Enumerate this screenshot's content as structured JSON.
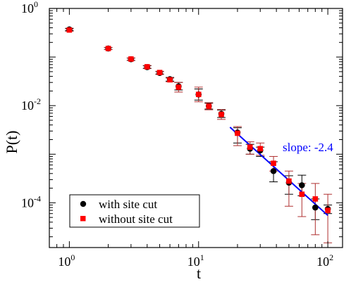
{
  "chart_data": {
    "type": "scatter",
    "xlabel": "t",
    "ylabel": "P(t)",
    "xscale": "log",
    "yscale": "log",
    "xlim": [
      0.7,
      130
    ],
    "ylim": [
      1.2e-05,
      1
    ],
    "x_ticks": [
      {
        "base": "10",
        "exp": "0",
        "value": 1
      },
      {
        "base": "10",
        "exp": "1",
        "value": 10
      },
      {
        "base": "10",
        "exp": "2",
        "value": 100
      }
    ],
    "y_ticks": [
      {
        "base": "10",
        "exp": "0",
        "value": 1
      },
      {
        "base": "10",
        "exp": "-2",
        "value": 0.01
      },
      {
        "base": "10",
        "exp": "-4",
        "value": 0.0001
      }
    ],
    "grid": false,
    "legend_position": "bottom-left",
    "series": [
      {
        "name": "with site cut",
        "marker": "circle",
        "color": "#000000",
        "points": [
          {
            "x": 1,
            "y": 0.37,
            "lo": 0.35,
            "hi": 0.39
          },
          {
            "x": 2,
            "y": 0.15,
            "lo": 0.143,
            "hi": 0.157
          },
          {
            "x": 3,
            "y": 0.09,
            "lo": 0.085,
            "hi": 0.095
          },
          {
            "x": 4,
            "y": 0.062,
            "lo": 0.058,
            "hi": 0.066
          },
          {
            "x": 5,
            "y": 0.047,
            "lo": 0.044,
            "hi": 0.05
          },
          {
            "x": 6,
            "y": 0.035,
            "lo": 0.032,
            "hi": 0.038
          },
          {
            "x": 7,
            "y": 0.025,
            "lo": 0.021,
            "hi": 0.03
          },
          {
            "x": 10,
            "y": 0.017,
            "lo": 0.013,
            "hi": 0.022
          },
          {
            "x": 12,
            "y": 0.0098,
            "lo": 0.0085,
            "hi": 0.0112
          },
          {
            "x": 15,
            "y": 0.0068,
            "lo": 0.0057,
            "hi": 0.0081
          },
          {
            "x": 20,
            "y": 0.0028,
            "lo": 0.0017,
            "hi": 0.0035
          },
          {
            "x": 25,
            "y": 0.0013,
            "lo": 0.001,
            "hi": 0.0016
          },
          {
            "x": 30,
            "y": 0.0012,
            "lo": 0.0009,
            "hi": 0.0014
          },
          {
            "x": 38,
            "y": 0.00045,
            "lo": 0.00027,
            "hi": 0.0007
          },
          {
            "x": 50,
            "y": 0.00026,
            "lo": 0.00015,
            "hi": 0.00036
          },
          {
            "x": 63,
            "y": 0.00023,
            "lo": 0.00014,
            "hi": 0.00037
          },
          {
            "x": 80,
            "y": 8e-05,
            "lo": 4.5e-05,
            "hi": 0.00012
          },
          {
            "x": 100,
            "y": 7.5e-05,
            "lo": 6e-05,
            "hi": 9e-05
          }
        ]
      },
      {
        "name": "without site cut",
        "marker": "square",
        "color": "#ff0000",
        "points": [
          {
            "x": 1,
            "y": 0.36,
            "lo": 0.34,
            "hi": 0.38
          },
          {
            "x": 2,
            "y": 0.15,
            "lo": 0.142,
            "hi": 0.158
          },
          {
            "x": 3,
            "y": 0.091,
            "lo": 0.086,
            "hi": 0.096
          },
          {
            "x": 4,
            "y": 0.063,
            "lo": 0.059,
            "hi": 0.067
          },
          {
            "x": 5,
            "y": 0.048,
            "lo": 0.045,
            "hi": 0.051
          },
          {
            "x": 6,
            "y": 0.034,
            "lo": 0.031,
            "hi": 0.037
          },
          {
            "x": 7,
            "y": 0.024,
            "lo": 0.019,
            "hi": 0.03
          },
          {
            "x": 10,
            "y": 0.017,
            "lo": 0.012,
            "hi": 0.024
          },
          {
            "x": 12,
            "y": 0.0097,
            "lo": 0.0082,
            "hi": 0.0115
          },
          {
            "x": 15,
            "y": 0.0066,
            "lo": 0.0052,
            "hi": 0.0083
          },
          {
            "x": 20,
            "y": 0.0027,
            "lo": 0.0015,
            "hi": 0.0037
          },
          {
            "x": 25,
            "y": 0.0014,
            "lo": 0.001,
            "hi": 0.0018
          },
          {
            "x": 30,
            "y": 0.0013,
            "lo": 0.00095,
            "hi": 0.0017
          },
          {
            "x": 38,
            "y": 0.00065,
            "lo": 0.00045,
            "hi": 0.0009
          },
          {
            "x": 50,
            "y": 0.00028,
            "lo": 8.5e-05,
            "hi": 0.00045
          },
          {
            "x": 63,
            "y": 0.00015,
            "lo": 5.2e-05,
            "hi": 0.00025
          },
          {
            "x": 80,
            "y": 0.00012,
            "lo": 2.2e-05,
            "hi": 0.00025
          },
          {
            "x": 100,
            "y": 7e-05,
            "lo": 1.5e-05,
            "hi": 0.00015
          }
        ]
      }
    ],
    "fit_line": {
      "color": "#0000ff",
      "x": [
        17.5,
        100
      ],
      "y": [
        0.0036,
        5.5e-05
      ],
      "label": "slope: -2.4"
    },
    "error_bar_colors": {
      "with site cut": "#000000",
      "without site cut": "#b03030"
    }
  }
}
